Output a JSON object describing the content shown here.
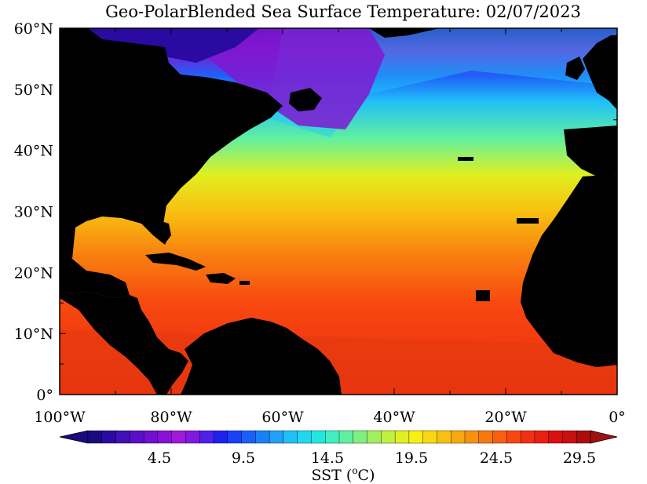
{
  "title": "Geo-PolarBlended Sea Surface Temperature: 02/07/2023",
  "lat_labels": [
    "60°N",
    "50°N",
    "40°N",
    "30°N",
    "20°N",
    "10°N",
    "0°"
  ],
  "lon_labels": [
    "100°W",
    "80°W",
    "60°W",
    "40°W",
    "20°W",
    "0°"
  ],
  "map_extent": {
    "lon_min": -100,
    "lon_max": 0,
    "lat_min": 0,
    "lat_max": 60
  },
  "colorbar": {
    "tick_labels": [
      "4.5",
      "9.5",
      "14.5",
      "19.5",
      "24.5",
      "29.5"
    ],
    "label": "SST (",
    "label_unit_sup": "o",
    "label_unit": "C)",
    "colors": [
      "#1a0a80",
      "#2a0aa0",
      "#4010b8",
      "#5a10c8",
      "#7010d0",
      "#8a10d8",
      "#a018d8",
      "#8018e0",
      "#5020e8",
      "#2020f0",
      "#1a40f8",
      "#1a60f8",
      "#1a80f8",
      "#20a0f8",
      "#20c0f8",
      "#20d8f0",
      "#20e8e0",
      "#40f0c0",
      "#60f0a0",
      "#80f080",
      "#a0f060",
      "#c0f040",
      "#e0f020",
      "#f8f010",
      "#f8d810",
      "#f8c010",
      "#f8a810",
      "#f89010",
      "#f87810",
      "#f86010",
      "#f84810",
      "#f03010",
      "#e82010",
      "#d81010",
      "#c81010",
      "#b00a0a"
    ]
  },
  "colors": {
    "land": "#000000",
    "ocean_warm": "#f83a10",
    "ocean_hot": "#e82010",
    "ocean_orange": "#f89a10",
    "ocean_yellow": "#f0f020",
    "ocean_green": "#80f080",
    "ocean_cyan": "#20d8f0",
    "ocean_blue": "#2060f8",
    "ocean_purple": "#8018d0",
    "ocean_navy": "#2a0aa0"
  }
}
